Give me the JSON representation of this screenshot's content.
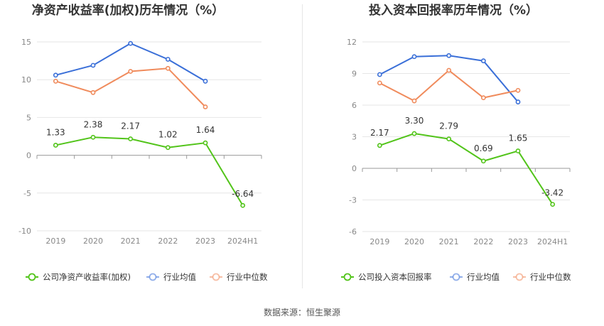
{
  "source": "数据来源：恒生聚源",
  "chart_data": [
    {
      "type": "line",
      "title": "净资产收益率(加权)历年情况（%）",
      "categories": [
        "2019",
        "2020",
        "2021",
        "2022",
        "2023",
        "2024H1"
      ],
      "ylim": [
        -10,
        15
      ],
      "yticks": [
        15,
        10,
        5,
        0,
        -5,
        -10
      ],
      "grid": true,
      "legend": "bottom",
      "series": [
        {
          "name": "公司净资产收益率(加权)",
          "color": "#52c41a",
          "labels": true,
          "values": [
            1.33,
            2.38,
            2.17,
            1.02,
            1.64,
            -6.64
          ]
        },
        {
          "name": "行业均值",
          "color": "#3a6fd8",
          "labels": false,
          "values": [
            10.6,
            11.9,
            14.8,
            12.7,
            9.8,
            null
          ]
        },
        {
          "name": "行业中位数",
          "color": "#f08b5c",
          "labels": false,
          "values": [
            9.8,
            8.3,
            11.1,
            11.5,
            6.4,
            null
          ]
        }
      ]
    },
    {
      "type": "line",
      "title": "投入资本回报率历年情况（%）",
      "categories": [
        "2019",
        "2020",
        "2021",
        "2022",
        "2023",
        "2024H1"
      ],
      "ylim": [
        -6,
        12
      ],
      "yticks": [
        12,
        9,
        6,
        3,
        0,
        -3,
        -6
      ],
      "grid": true,
      "legend": "bottom",
      "series": [
        {
          "name": "公司投入资本回报率",
          "color": "#52c41a",
          "labels": true,
          "values": [
            2.17,
            3.3,
            2.79,
            0.69,
            1.65,
            -3.42
          ]
        },
        {
          "name": "行业均值",
          "color": "#3a6fd8",
          "labels": false,
          "values": [
            8.9,
            10.6,
            10.7,
            10.2,
            6.3,
            null
          ]
        },
        {
          "name": "行业中位数",
          "color": "#f08b5c",
          "labels": false,
          "values": [
            8.1,
            6.4,
            9.3,
            6.7,
            7.4,
            null
          ]
        }
      ]
    }
  ]
}
